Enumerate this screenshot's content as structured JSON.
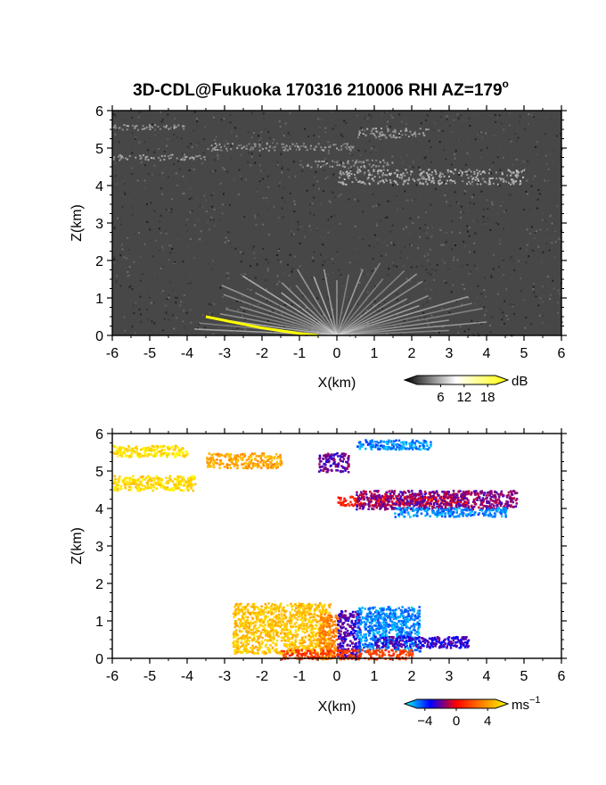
{
  "title": "3D-CDL@Fukuoka 170316 210006 RHI AZ=179",
  "title_superscript": "o",
  "chart_data": [
    {
      "panel": "top",
      "type": "heatmap",
      "quantity": "backscatter intensity",
      "xlabel": "X(km)",
      "ylabel": "Z(km)",
      "xlim": [
        -6,
        6
      ],
      "ylim": [
        0,
        6
      ],
      "xticks": [
        "-6",
        "-5",
        "-4",
        "-3",
        "-2",
        "-1",
        "0",
        "1",
        "2",
        "3",
        "4",
        "5",
        "6"
      ],
      "yticks": [
        "0",
        "1",
        "2",
        "3",
        "4",
        "5",
        "6"
      ],
      "colorbar": {
        "unit": "dB",
        "ticks": [
          "6",
          "12",
          "18"
        ],
        "range": [
          0,
          20
        ],
        "colors": [
          "#000000",
          "#ffffff",
          "#ffff00"
        ]
      },
      "background_level_db": 5,
      "layers": [
        {
          "x": [
            -6,
            -4.0
          ],
          "z": [
            5.5,
            5.65
          ],
          "db": 11
        },
        {
          "x": [
            -6,
            -3.5
          ],
          "z": [
            4.7,
            4.85
          ],
          "db": 11
        },
        {
          "x": [
            -3.5,
            0.5
          ],
          "z": [
            4.95,
            5.15
          ],
          "db": 10
        },
        {
          "x": [
            0.5,
            2.5
          ],
          "z": [
            5.3,
            5.55
          ],
          "db": 11
        },
        {
          "x": [
            -1.0,
            1.5
          ],
          "z": [
            4.5,
            4.7
          ],
          "db": 10
        },
        {
          "x": [
            0.0,
            5.0
          ],
          "z": [
            4.05,
            4.45
          ],
          "db": 12
        }
      ],
      "surface_echo_db": 20,
      "surface_echo": [
        [
          -3.5,
          0.5
        ],
        [
          -3.0,
          0.4
        ],
        [
          -2.0,
          0.2
        ],
        [
          -1.0,
          0.05
        ],
        [
          -0.5,
          0.0
        ]
      ]
    },
    {
      "panel": "bottom",
      "type": "heatmap",
      "quantity": "radial velocity",
      "xlabel": "X(km)",
      "ylabel": "Z(km)",
      "xlim": [
        -6,
        6
      ],
      "ylim": [
        0,
        6
      ],
      "xticks": [
        "-6",
        "-5",
        "-4",
        "-3",
        "-2",
        "-1",
        "0",
        "1",
        "2",
        "3",
        "4",
        "5",
        "6"
      ],
      "yticks": [
        "0",
        "1",
        "2",
        "3",
        "4",
        "5",
        "6"
      ],
      "colorbar": {
        "unit": "ms",
        "unit_exponent": "−1",
        "ticks": [
          "−4",
          "0",
          "4"
        ],
        "range": [
          -5,
          5
        ],
        "colors": [
          "#00ffff",
          "#0000ff",
          "#ff0000",
          "#ff8000",
          "#ffff00"
        ]
      },
      "regions": [
        {
          "x": [
            -6,
            -4.0
          ],
          "z": [
            5.4,
            5.7
          ],
          "v": 4.5
        },
        {
          "x": [
            -6,
            -3.8
          ],
          "z": [
            4.5,
            4.9
          ],
          "v": 4.3
        },
        {
          "x": [
            -3.5,
            -1.5
          ],
          "z": [
            5.1,
            5.5
          ],
          "v": 3.2
        },
        {
          "x": [
            -0.5,
            0.3
          ],
          "z": [
            5.0,
            5.5
          ],
          "v": -1.5
        },
        {
          "x": [
            0.5,
            2.5
          ],
          "z": [
            5.6,
            5.85
          ],
          "v": -3.8
        },
        {
          "x": [
            0.0,
            3.5
          ],
          "z": [
            4.1,
            4.35
          ],
          "v": 0.6
        },
        {
          "x": [
            0.5,
            4.8
          ],
          "z": [
            4.0,
            4.5
          ],
          "v": -1.2
        },
        {
          "x": [
            1.5,
            4.5
          ],
          "z": [
            3.8,
            4.05
          ],
          "v": -3.8
        },
        {
          "x": [
            -2.8,
            -0.2
          ],
          "z": [
            0.15,
            1.5
          ],
          "v": 3.8
        },
        {
          "x": [
            -0.5,
            0.0
          ],
          "z": [
            0.0,
            1.2
          ],
          "v": 2.5
        },
        {
          "x": [
            0.0,
            0.6
          ],
          "z": [
            0.0,
            1.3
          ],
          "v": -1.8
        },
        {
          "x": [
            0.5,
            2.2
          ],
          "z": [
            0.2,
            1.4
          ],
          "v": -3.8
        },
        {
          "x": [
            -1.5,
            2.0
          ],
          "z": [
            0.0,
            0.25
          ],
          "v": 1.2
        },
        {
          "x": [
            1.0,
            3.5
          ],
          "z": [
            0.3,
            0.6
          ],
          "v": -2.0
        }
      ]
    }
  ]
}
